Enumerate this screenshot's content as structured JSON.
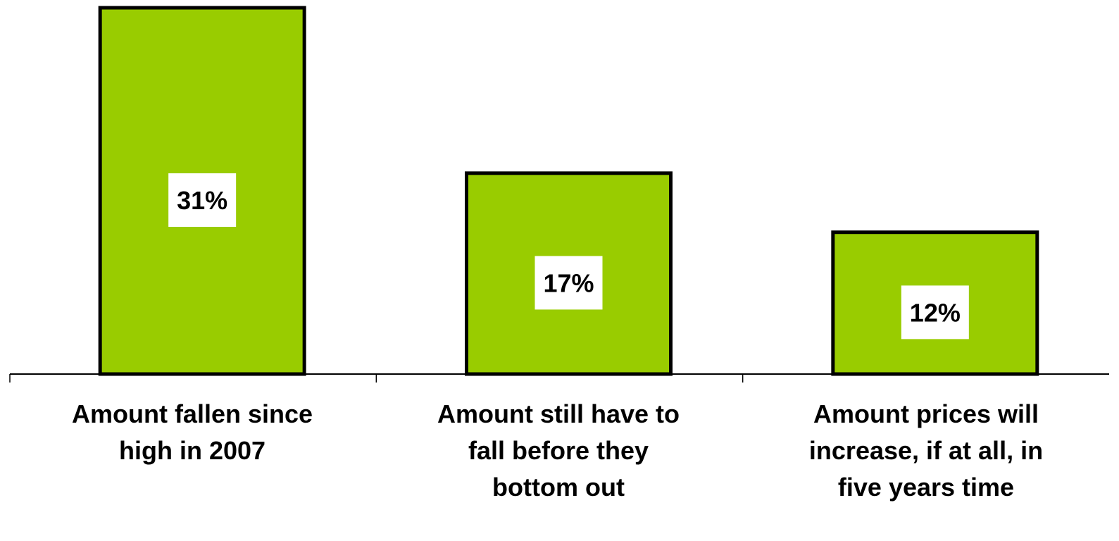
{
  "chart_data": {
    "type": "bar",
    "categories": [
      "Amount fallen since high in 2007",
      "Amount still have to fall before they bottom out",
      "Amount prices will increase, if at all, in five years time"
    ],
    "values": [
      31,
      17,
      12
    ],
    "value_labels": [
      "31%",
      "17%",
      "12%"
    ],
    "unit": "%",
    "title": "",
    "xlabel": "",
    "ylabel": "",
    "ylim": [
      0,
      31
    ],
    "grid": false,
    "legend": "none",
    "colors": {
      "bar_fill": "#99cc00",
      "bar_stroke": "#000000",
      "label_background": "#ffffff",
      "text": "#000000",
      "axis": "#000000"
    }
  }
}
